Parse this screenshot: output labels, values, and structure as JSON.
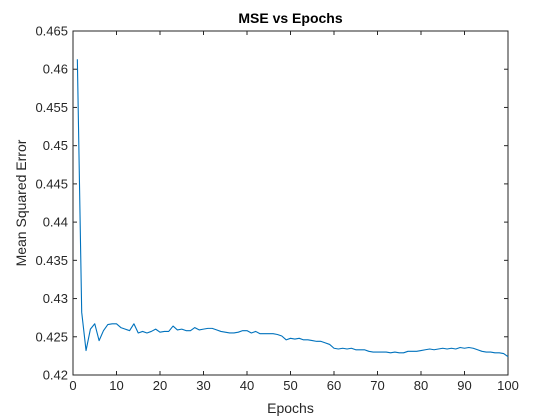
{
  "chart_data": {
    "type": "line",
    "title": "MSE vs Epochs",
    "xlabel": "Epochs",
    "ylabel": "Mean Squared Error",
    "xlim": [
      0,
      100
    ],
    "ylim": [
      0.42,
      0.465
    ],
    "grid": false,
    "box": true,
    "x_ticks": [
      "0",
      "10",
      "20",
      "30",
      "40",
      "50",
      "60",
      "70",
      "80",
      "90",
      "100"
    ],
    "y_ticks": [
      "0.42",
      "0.425",
      "0.43",
      "0.435",
      "0.44",
      "0.445",
      "0.45",
      "0.455",
      "0.46",
      "0.465"
    ],
    "series": [
      {
        "color": "#0072BD",
        "x": [
          1,
          2,
          3,
          4,
          5,
          6,
          7,
          8,
          9,
          10,
          11,
          12,
          13,
          14,
          15,
          16,
          17,
          18,
          19,
          20,
          21,
          22,
          23,
          24,
          25,
          26,
          27,
          28,
          29,
          30,
          31,
          32,
          33,
          34,
          35,
          36,
          37,
          38,
          39,
          40,
          41,
          42,
          43,
          44,
          45,
          46,
          47,
          48,
          49,
          50,
          51,
          52,
          53,
          54,
          55,
          56,
          57,
          58,
          59,
          60,
          61,
          62,
          63,
          64,
          65,
          66,
          67,
          68,
          69,
          70,
          71,
          72,
          73,
          74,
          75,
          76,
          77,
          78,
          79,
          80,
          81,
          82,
          83,
          84,
          85,
          86,
          87,
          88,
          89,
          90,
          91,
          92,
          93,
          94,
          95,
          96,
          97,
          98,
          99,
          100
        ],
        "y": [
          0.4613,
          0.4282,
          0.4232,
          0.426,
          0.4267,
          0.4245,
          0.4258,
          0.4266,
          0.4267,
          0.4267,
          0.4262,
          0.426,
          0.4258,
          0.4267,
          0.4255,
          0.4257,
          0.4255,
          0.4257,
          0.426,
          0.4256,
          0.4257,
          0.4257,
          0.4264,
          0.4259,
          0.426,
          0.4258,
          0.4258,
          0.4262,
          0.4259,
          0.426,
          0.4261,
          0.4261,
          0.4259,
          0.4257,
          0.4256,
          0.4255,
          0.4255,
          0.4256,
          0.4258,
          0.4258,
          0.4255,
          0.4257,
          0.4254,
          0.4254,
          0.4254,
          0.4254,
          0.4253,
          0.4251,
          0.4246,
          0.4248,
          0.4247,
          0.4248,
          0.4246,
          0.4246,
          0.4245,
          0.4244,
          0.4244,
          0.4242,
          0.424,
          0.4235,
          0.4234,
          0.4235,
          0.4234,
          0.4235,
          0.4233,
          0.4233,
          0.4233,
          0.4231,
          0.423,
          0.423,
          0.423,
          0.423,
          0.4229,
          0.423,
          0.4229,
          0.4229,
          0.4231,
          0.4231,
          0.4231,
          0.4232,
          0.4233,
          0.4234,
          0.4233,
          0.4234,
          0.4235,
          0.4234,
          0.4235,
          0.4234,
          0.4236,
          0.4235,
          0.4236,
          0.4235,
          0.4233,
          0.4231,
          0.423,
          0.423,
          0.4229,
          0.4229,
          0.4228,
          0.4224
        ]
      }
    ]
  }
}
